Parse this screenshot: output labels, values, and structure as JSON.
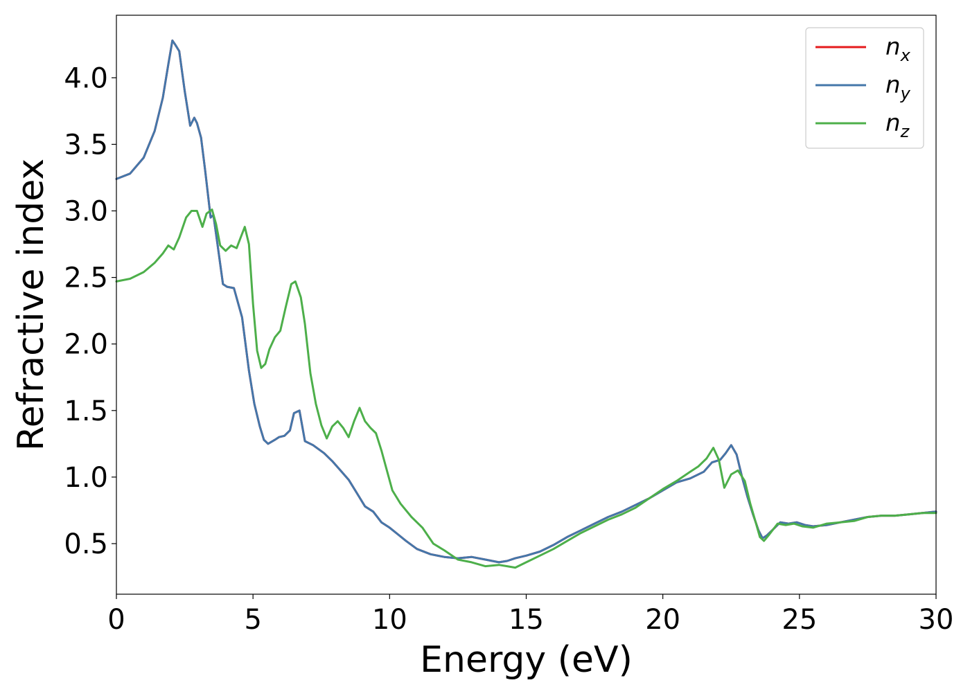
{
  "chart_data": {
    "type": "line",
    "title": "",
    "xlabel": "Energy (eV)",
    "ylabel": "Refractive index",
    "xlim": [
      0,
      30
    ],
    "ylim": [
      0.12,
      4.47
    ],
    "xticks": [
      0,
      5,
      10,
      15,
      20,
      25,
      30
    ],
    "yticks": [
      0.5,
      1.0,
      1.5,
      2.0,
      2.5,
      3.0,
      3.5,
      4.0
    ],
    "xtick_labels": [
      "0",
      "5",
      "10",
      "15",
      "20",
      "25",
      "30"
    ],
    "ytick_labels": [
      "0.5",
      "1.0",
      "1.5",
      "2.0",
      "2.5",
      "3.0",
      "3.5",
      "4.0"
    ],
    "grid": false,
    "legend_position": "top-right",
    "series": [
      {
        "name": "n_x",
        "label_main": "n",
        "label_sub": "x",
        "color": "#e41a1c",
        "x": [
          0,
          0.5,
          1.0,
          1.4,
          1.7,
          1.9,
          2.05,
          2.15,
          2.3,
          2.5,
          2.7,
          2.85,
          2.95,
          3.1,
          3.25,
          3.45,
          3.55,
          3.7,
          3.9,
          4.05,
          4.3,
          4.6,
          4.85,
          5.05,
          5.25,
          5.4,
          5.55,
          5.8,
          5.95,
          6.15,
          6.35,
          6.5,
          6.7,
          6.9,
          7.2,
          7.6,
          7.9,
          8.2,
          8.5,
          8.8,
          9.1,
          9.4,
          9.7,
          10.0,
          10.3,
          10.6,
          11.0,
          11.5,
          12.0,
          12.5,
          13.0,
          13.5,
          14.0,
          14.3,
          14.6,
          15.0,
          15.5,
          16.0,
          16.5,
          17.0,
          17.5,
          18.0,
          18.5,
          19.0,
          19.5,
          20.0,
          20.5,
          21.0,
          21.5,
          21.8,
          22.1,
          22.3,
          22.5,
          22.7,
          22.9,
          23.1,
          23.3,
          23.5,
          23.65,
          23.8,
          24.0,
          24.3,
          24.6,
          24.9,
          25.2,
          25.5,
          26.0,
          26.5,
          27.0,
          27.5,
          28.0,
          28.5,
          29.0,
          29.5,
          30.0
        ],
        "y": [
          3.24,
          3.28,
          3.4,
          3.6,
          3.85,
          4.1,
          4.28,
          4.25,
          4.2,
          3.9,
          3.64,
          3.7,
          3.66,
          3.55,
          3.3,
          2.95,
          2.97,
          2.75,
          2.45,
          2.43,
          2.42,
          2.2,
          1.8,
          1.55,
          1.38,
          1.28,
          1.25,
          1.28,
          1.3,
          1.31,
          1.35,
          1.48,
          1.5,
          1.27,
          1.24,
          1.18,
          1.12,
          1.05,
          0.98,
          0.88,
          0.78,
          0.74,
          0.66,
          0.62,
          0.57,
          0.52,
          0.46,
          0.42,
          0.4,
          0.39,
          0.4,
          0.38,
          0.36,
          0.37,
          0.39,
          0.41,
          0.44,
          0.49,
          0.55,
          0.6,
          0.65,
          0.7,
          0.74,
          0.79,
          0.84,
          0.9,
          0.96,
          0.99,
          1.04,
          1.11,
          1.13,
          1.18,
          1.24,
          1.17,
          1.0,
          0.85,
          0.72,
          0.6,
          0.54,
          0.56,
          0.6,
          0.66,
          0.65,
          0.66,
          0.64,
          0.63,
          0.64,
          0.66,
          0.68,
          0.7,
          0.71,
          0.71,
          0.72,
          0.73,
          0.74
        ]
      },
      {
        "name": "n_y",
        "label_main": "n",
        "label_sub": "y",
        "color": "#4477aa",
        "x": [
          0,
          0.5,
          1.0,
          1.4,
          1.7,
          1.9,
          2.05,
          2.15,
          2.3,
          2.5,
          2.7,
          2.85,
          2.95,
          3.1,
          3.25,
          3.45,
          3.55,
          3.7,
          3.9,
          4.05,
          4.3,
          4.6,
          4.85,
          5.05,
          5.25,
          5.4,
          5.55,
          5.8,
          5.95,
          6.15,
          6.35,
          6.5,
          6.7,
          6.9,
          7.2,
          7.6,
          7.9,
          8.2,
          8.5,
          8.8,
          9.1,
          9.4,
          9.7,
          10.0,
          10.3,
          10.6,
          11.0,
          11.5,
          12.0,
          12.5,
          13.0,
          13.5,
          14.0,
          14.3,
          14.6,
          15.0,
          15.5,
          16.0,
          16.5,
          17.0,
          17.5,
          18.0,
          18.5,
          19.0,
          19.5,
          20.0,
          20.5,
          21.0,
          21.5,
          21.8,
          22.1,
          22.3,
          22.5,
          22.7,
          22.9,
          23.1,
          23.3,
          23.5,
          23.65,
          23.8,
          24.0,
          24.3,
          24.6,
          24.9,
          25.2,
          25.5,
          26.0,
          26.5,
          27.0,
          27.5,
          28.0,
          28.5,
          29.0,
          29.5,
          30.0
        ],
        "y": [
          3.24,
          3.28,
          3.4,
          3.6,
          3.85,
          4.1,
          4.28,
          4.25,
          4.2,
          3.9,
          3.64,
          3.7,
          3.66,
          3.55,
          3.3,
          2.95,
          2.97,
          2.75,
          2.45,
          2.43,
          2.42,
          2.2,
          1.8,
          1.55,
          1.38,
          1.28,
          1.25,
          1.28,
          1.3,
          1.31,
          1.35,
          1.48,
          1.5,
          1.27,
          1.24,
          1.18,
          1.12,
          1.05,
          0.98,
          0.88,
          0.78,
          0.74,
          0.66,
          0.62,
          0.57,
          0.52,
          0.46,
          0.42,
          0.4,
          0.39,
          0.4,
          0.38,
          0.36,
          0.37,
          0.39,
          0.41,
          0.44,
          0.49,
          0.55,
          0.6,
          0.65,
          0.7,
          0.74,
          0.79,
          0.84,
          0.9,
          0.96,
          0.99,
          1.04,
          1.11,
          1.13,
          1.18,
          1.24,
          1.17,
          1.0,
          0.85,
          0.72,
          0.6,
          0.54,
          0.56,
          0.6,
          0.66,
          0.65,
          0.66,
          0.64,
          0.63,
          0.64,
          0.66,
          0.68,
          0.7,
          0.71,
          0.71,
          0.72,
          0.73,
          0.74
        ]
      },
      {
        "name": "n_z",
        "label_main": "n",
        "label_sub": "z",
        "color": "#4daf4a",
        "x": [
          0,
          0.5,
          1.0,
          1.4,
          1.7,
          1.9,
          2.1,
          2.3,
          2.55,
          2.75,
          2.95,
          3.15,
          3.3,
          3.5,
          3.65,
          3.8,
          4.0,
          4.2,
          4.4,
          4.55,
          4.7,
          4.85,
          5.0,
          5.15,
          5.3,
          5.45,
          5.6,
          5.8,
          6.0,
          6.2,
          6.4,
          6.55,
          6.75,
          6.9,
          7.1,
          7.3,
          7.5,
          7.7,
          7.9,
          8.1,
          8.3,
          8.5,
          8.7,
          8.9,
          9.1,
          9.3,
          9.5,
          9.7,
          9.9,
          10.1,
          10.4,
          10.8,
          11.2,
          11.6,
          12.0,
          12.5,
          13.0,
          13.5,
          14.0,
          14.3,
          14.6,
          15.0,
          15.5,
          16.0,
          16.5,
          17.0,
          17.5,
          18.0,
          18.5,
          19.0,
          19.5,
          20.0,
          20.5,
          21.0,
          21.3,
          21.6,
          21.85,
          22.05,
          22.25,
          22.5,
          22.75,
          23.0,
          23.2,
          23.4,
          23.55,
          23.7,
          23.9,
          24.2,
          24.5,
          24.8,
          25.1,
          25.5,
          26.0,
          26.5,
          27.0,
          27.5,
          28.0,
          28.5,
          29.0,
          29.5,
          30.0
        ],
        "y": [
          2.47,
          2.49,
          2.54,
          2.61,
          2.68,
          2.74,
          2.71,
          2.8,
          2.95,
          3.0,
          3.0,
          2.88,
          2.98,
          3.01,
          2.9,
          2.74,
          2.7,
          2.74,
          2.72,
          2.8,
          2.88,
          2.75,
          2.3,
          1.95,
          1.82,
          1.85,
          1.96,
          2.05,
          2.1,
          2.28,
          2.45,
          2.47,
          2.35,
          2.15,
          1.78,
          1.55,
          1.39,
          1.29,
          1.38,
          1.42,
          1.37,
          1.3,
          1.42,
          1.52,
          1.42,
          1.37,
          1.33,
          1.2,
          1.05,
          0.9,
          0.8,
          0.7,
          0.62,
          0.5,
          0.45,
          0.38,
          0.36,
          0.33,
          0.34,
          0.33,
          0.32,
          0.36,
          0.41,
          0.46,
          0.52,
          0.58,
          0.63,
          0.68,
          0.72,
          0.77,
          0.84,
          0.91,
          0.97,
          1.04,
          1.08,
          1.14,
          1.22,
          1.13,
          0.92,
          1.02,
          1.05,
          0.97,
          0.8,
          0.66,
          0.55,
          0.52,
          0.57,
          0.65,
          0.64,
          0.65,
          0.63,
          0.62,
          0.65,
          0.66,
          0.67,
          0.7,
          0.71,
          0.71,
          0.72,
          0.73,
          0.73
        ]
      }
    ]
  }
}
